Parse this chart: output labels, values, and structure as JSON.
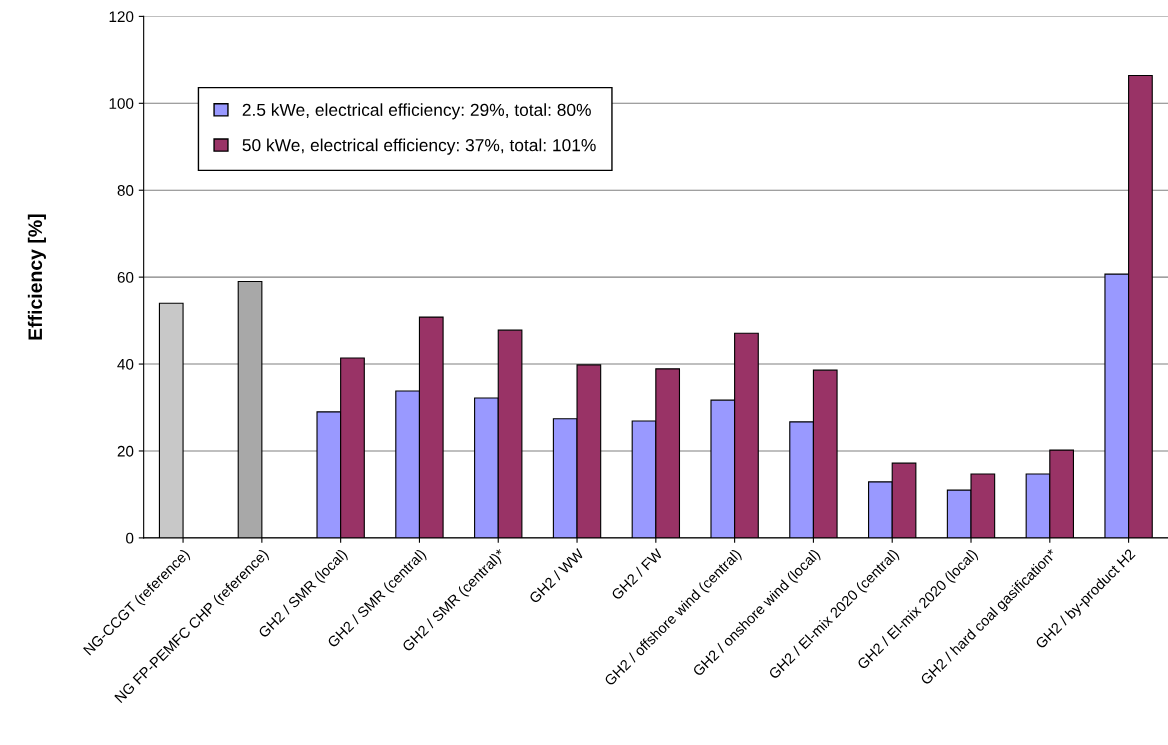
{
  "chart_data": {
    "type": "bar",
    "ylabel": "Efficiency [%]",
    "categories": [
      "NG-CCGT (reference)",
      "NG FP-PEMFC CHP (reference)",
      "GH2 / SMR (local)",
      "GH2 / SMR (central)",
      "GH2 / SMR (central)*",
      "GH2 / WW",
      "GH2 / FW",
      "GH2 / offshore wind (central)",
      "GH2 / onshore wind (local)",
      "GH2 / El-mix 2020 (central)",
      "GH2 / El-mix 2020 (local)",
      "GH2 / hard coal gasification*",
      "GH2 / by-product H2"
    ],
    "series": [
      {
        "name": "2.5 kWe, electrical efficiency: 29%, total: 80%",
        "color": "#9999ff",
        "colors": [
          "#c8c8c8",
          "#a8a8a8",
          "#9999ff",
          "#9999ff",
          "#9999ff",
          "#9999ff",
          "#9999ff",
          "#9999ff",
          "#9999ff",
          "#9999ff",
          "#9999ff",
          "#9999ff",
          "#9999ff"
        ],
        "values": [
          54,
          59,
          29,
          33.8,
          32.2,
          27.4,
          26.9,
          31.7,
          26.7,
          12.9,
          11,
          14.7,
          60.7
        ]
      },
      {
        "name": "50 kWe, electrical efficiency: 37%, total: 101%",
        "color": "#993366",
        "values": [
          null,
          null,
          41.4,
          50.8,
          47.8,
          39.8,
          38.9,
          47.1,
          38.6,
          17.2,
          14.7,
          20.2,
          106.4
        ]
      }
    ],
    "ylim": [
      0,
      120
    ],
    "yticks": [
      0,
      20,
      40,
      60,
      80,
      100,
      120
    ],
    "grid": "y",
    "legend": "top left"
  }
}
